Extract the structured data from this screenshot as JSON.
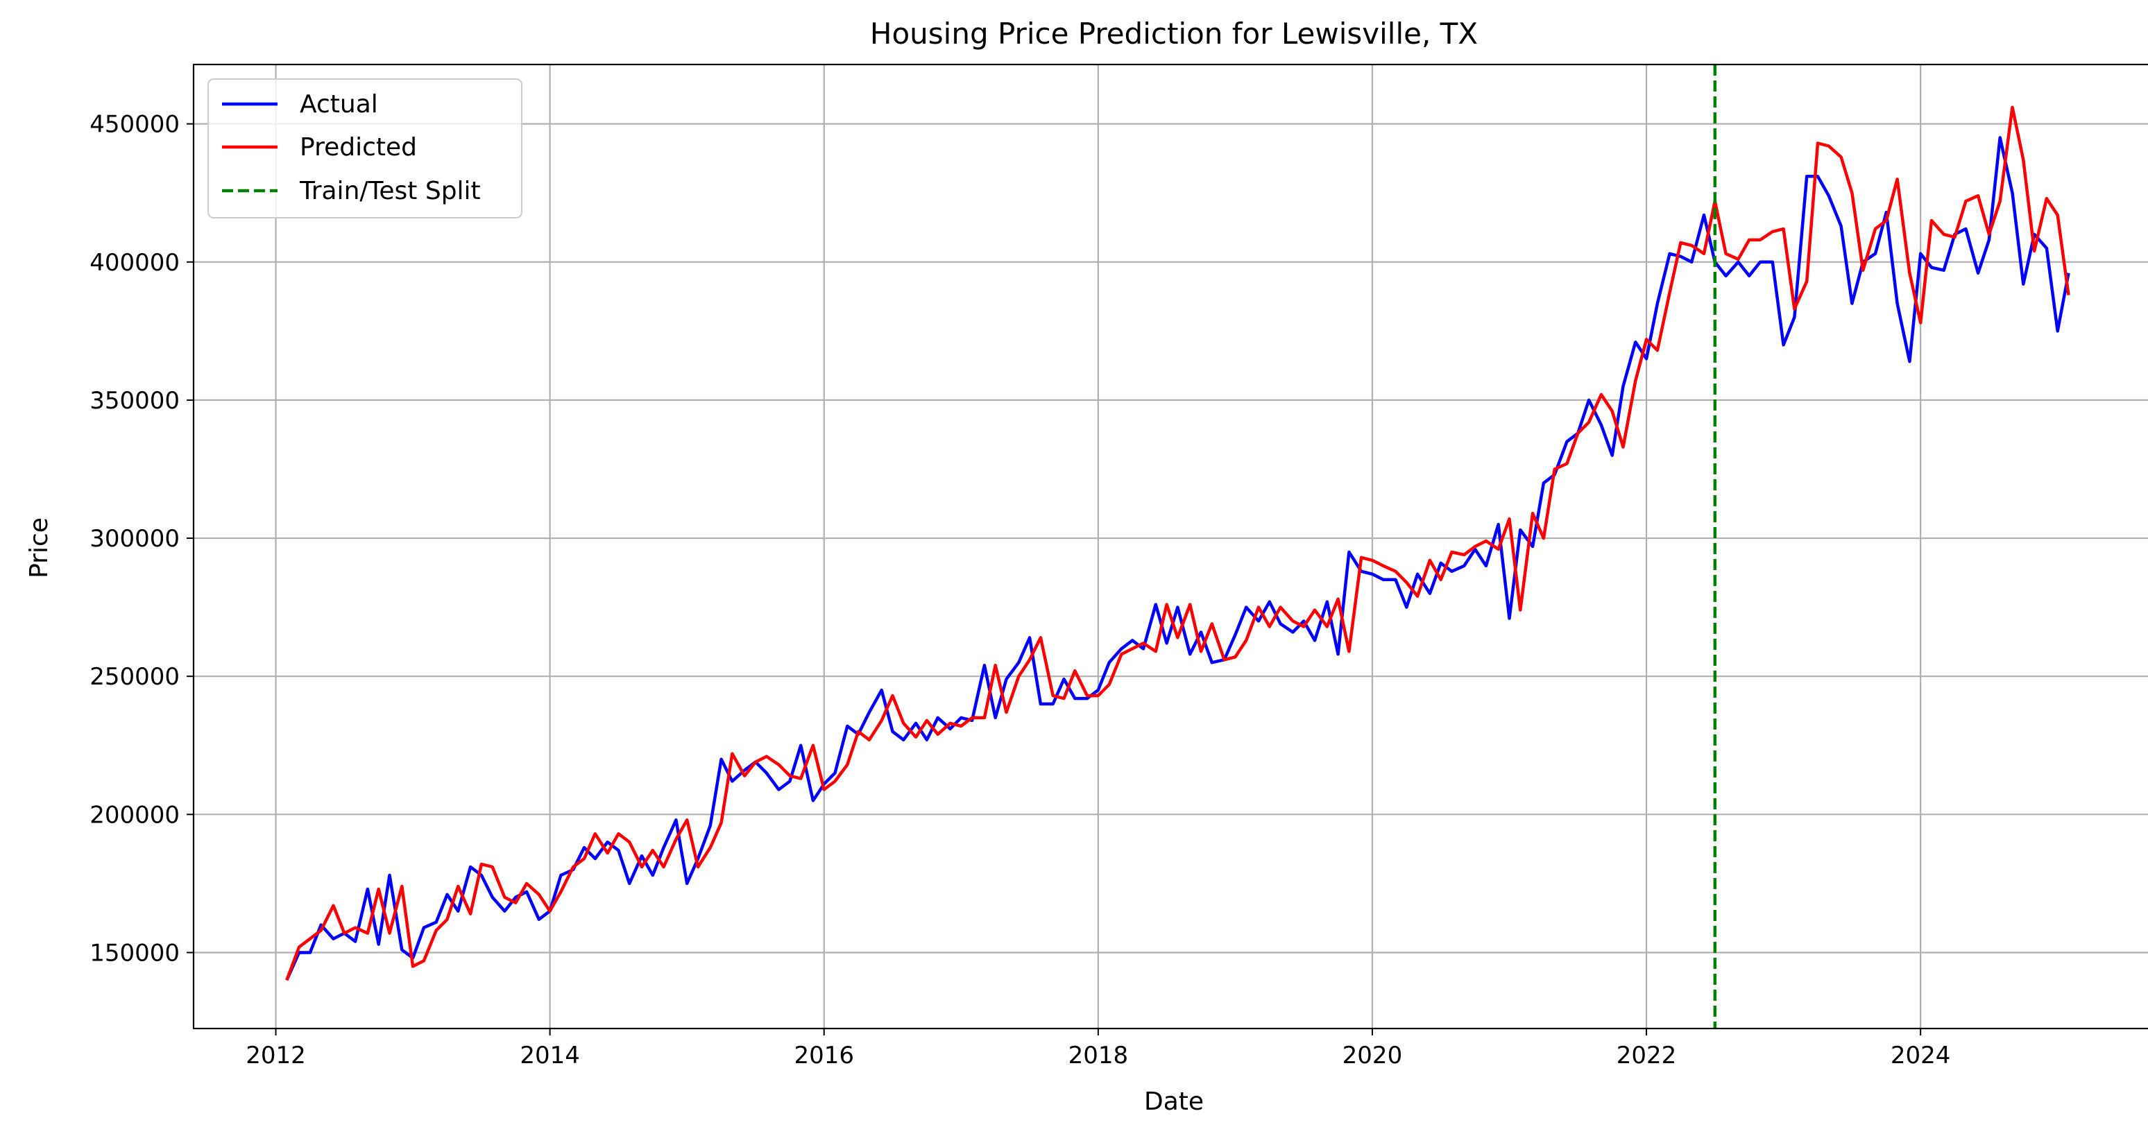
{
  "chart_data": {
    "type": "line",
    "title": "Housing Price Prediction for Lewisville, TX",
    "xlabel": "Date",
    "ylabel": "Price",
    "xlim": [
      2011.4,
      2025.7
    ],
    "ylim": [
      122500,
      471500
    ],
    "xticks": [
      2012,
      2014,
      2016,
      2018,
      2020,
      2022,
      2024
    ],
    "yticks": [
      150000,
      200000,
      250000,
      300000,
      350000,
      400000,
      450000
    ],
    "grid": true,
    "legend_position": "top-left",
    "split": {
      "name": "Train/Test Split",
      "x": 2022.5,
      "color": "#008000"
    },
    "series": [
      {
        "name": "Actual",
        "color": "#0000ff",
        "x": [
          2012.08,
          2012.17,
          2012.25,
          2012.33,
          2012.42,
          2012.5,
          2012.58,
          2012.67,
          2012.75,
          2012.83,
          2012.92,
          2013.0,
          2013.08,
          2013.17,
          2013.25,
          2013.33,
          2013.42,
          2013.5,
          2013.58,
          2013.67,
          2013.75,
          2013.83,
          2013.92,
          2014.0,
          2014.08,
          2014.17,
          2014.25,
          2014.33,
          2014.42,
          2014.5,
          2014.58,
          2014.67,
          2014.75,
          2014.83,
          2014.92,
          2015.0,
          2015.08,
          2015.17,
          2015.25,
          2015.33,
          2015.42,
          2015.5,
          2015.58,
          2015.67,
          2015.75,
          2015.83,
          2015.92,
          2016.0,
          2016.08,
          2016.17,
          2016.25,
          2016.33,
          2016.42,
          2016.5,
          2016.58,
          2016.67,
          2016.75,
          2016.83,
          2016.92,
          2017.0,
          2017.08,
          2017.17,
          2017.25,
          2017.33,
          2017.42,
          2017.5,
          2017.58,
          2017.67,
          2017.75,
          2017.83,
          2017.92,
          2018.0,
          2018.08,
          2018.17,
          2018.25,
          2018.33,
          2018.42,
          2018.5,
          2018.58,
          2018.67,
          2018.75,
          2018.83,
          2018.92,
          2019.0,
          2019.08,
          2019.17,
          2019.25,
          2019.33,
          2019.42,
          2019.5,
          2019.58,
          2019.67,
          2019.75,
          2019.83,
          2019.92,
          2020.0,
          2020.08,
          2020.17,
          2020.25,
          2020.33,
          2020.42,
          2020.5,
          2020.58,
          2020.67,
          2020.75,
          2020.83,
          2020.92,
          2021.0,
          2021.08,
          2021.17,
          2021.25,
          2021.33,
          2021.42,
          2021.5,
          2021.58,
          2021.67,
          2021.75,
          2021.83,
          2021.92,
          2022.0,
          2022.08,
          2022.17,
          2022.25,
          2022.33,
          2022.42,
          2022.5,
          2022.58,
          2022.67,
          2022.75,
          2022.83,
          2022.92,
          2023.0,
          2023.08,
          2023.17,
          2023.25,
          2023.33,
          2023.42,
          2023.5,
          2023.58,
          2023.67,
          2023.75,
          2023.83,
          2023.92,
          2024.0,
          2024.08,
          2024.17,
          2024.25,
          2024.33,
          2024.42,
          2024.5,
          2024.58,
          2024.67,
          2024.75,
          2024.83,
          2024.92,
          2025.0,
          2025.08
        ],
        "y": [
          140000,
          150000,
          150000,
          160000,
          155000,
          157000,
          154000,
          173000,
          153000,
          178000,
          151000,
          148000,
          159000,
          161000,
          171000,
          165000,
          181000,
          178000,
          170000,
          165000,
          170000,
          172000,
          162000,
          165000,
          178000,
          180000,
          188000,
          184000,
          190000,
          187000,
          175000,
          185000,
          178000,
          188000,
          198000,
          175000,
          184000,
          196000,
          220000,
          212000,
          216000,
          219000,
          215000,
          209000,
          212000,
          225000,
          205000,
          211000,
          215000,
          232000,
          229000,
          237000,
          245000,
          230000,
          227000,
          233000,
          227000,
          235000,
          231000,
          235000,
          234000,
          254000,
          235000,
          249000,
          255000,
          264000,
          240000,
          240000,
          249000,
          242000,
          242000,
          245000,
          255000,
          260000,
          263000,
          260000,
          276000,
          262000,
          275000,
          258000,
          266000,
          255000,
          256000,
          265000,
          275000,
          270000,
          277000,
          269000,
          266000,
          270000,
          263000,
          277000,
          258000,
          295000,
          288000,
          287000,
          285000,
          285000,
          275000,
          287000,
          280000,
          291000,
          288000,
          290000,
          296000,
          290000,
          305000,
          271000,
          303000,
          297000,
          320000,
          323000,
          335000,
          338000,
          350000,
          341000,
          330000,
          355000,
          371000,
          365000,
          385000,
          403000,
          402000,
          400000,
          417000,
          400000,
          395000,
          400000,
          395000,
          400000,
          400000,
          370000,
          380000,
          431000,
          431000,
          424000,
          413000,
          385000,
          400000,
          403000,
          418000,
          385000,
          364000,
          403000,
          398000,
          397000,
          410000,
          412000,
          396000,
          408000,
          445000,
          425000,
          392000,
          410000,
          405000,
          375000,
          396000
        ]
      },
      {
        "name": "Predicted",
        "color": "#ff0000",
        "x": [
          2012.08,
          2012.17,
          2012.25,
          2012.33,
          2012.42,
          2012.5,
          2012.58,
          2012.67,
          2012.75,
          2012.83,
          2012.92,
          2013.0,
          2013.08,
          2013.17,
          2013.25,
          2013.33,
          2013.42,
          2013.5,
          2013.58,
          2013.67,
          2013.75,
          2013.83,
          2013.92,
          2014.0,
          2014.08,
          2014.17,
          2014.25,
          2014.33,
          2014.42,
          2014.5,
          2014.58,
          2014.67,
          2014.75,
          2014.83,
          2014.92,
          2015.0,
          2015.08,
          2015.17,
          2015.25,
          2015.33,
          2015.42,
          2015.5,
          2015.58,
          2015.67,
          2015.75,
          2015.83,
          2015.92,
          2016.0,
          2016.08,
          2016.17,
          2016.25,
          2016.33,
          2016.42,
          2016.5,
          2016.58,
          2016.67,
          2016.75,
          2016.83,
          2016.92,
          2017.0,
          2017.08,
          2017.17,
          2017.25,
          2017.33,
          2017.42,
          2017.5,
          2017.58,
          2017.67,
          2017.75,
          2017.83,
          2017.92,
          2018.0,
          2018.08,
          2018.17,
          2018.25,
          2018.33,
          2018.42,
          2018.5,
          2018.58,
          2018.67,
          2018.75,
          2018.83,
          2018.92,
          2019.0,
          2019.08,
          2019.17,
          2019.25,
          2019.33,
          2019.42,
          2019.5,
          2019.58,
          2019.67,
          2019.75,
          2019.83,
          2019.92,
          2020.0,
          2020.08,
          2020.17,
          2020.25,
          2020.33,
          2020.42,
          2020.5,
          2020.58,
          2020.67,
          2020.75,
          2020.83,
          2020.92,
          2021.0,
          2021.08,
          2021.17,
          2021.25,
          2021.33,
          2021.42,
          2021.5,
          2021.58,
          2021.67,
          2021.75,
          2021.83,
          2021.92,
          2022.0,
          2022.08,
          2022.17,
          2022.25,
          2022.33,
          2022.42,
          2022.5,
          2022.58,
          2022.67,
          2022.75,
          2022.83,
          2022.92,
          2023.0,
          2023.08,
          2023.17,
          2023.25,
          2023.33,
          2023.42,
          2023.5,
          2023.58,
          2023.67,
          2023.75,
          2023.83,
          2023.92,
          2024.0,
          2024.08,
          2024.17,
          2024.25,
          2024.33,
          2024.42,
          2024.5,
          2024.58,
          2024.67,
          2024.75,
          2024.83,
          2024.92,
          2025.0,
          2025.08
        ],
        "y": [
          140000,
          152000,
          155000,
          158000,
          167000,
          157000,
          159000,
          157000,
          173000,
          157000,
          174000,
          145000,
          147000,
          158000,
          162000,
          174000,
          164000,
          182000,
          181000,
          170000,
          168000,
          175000,
          171000,
          165000,
          172000,
          181000,
          184000,
          193000,
          186000,
          193000,
          190000,
          181000,
          187000,
          181000,
          191000,
          198000,
          181000,
          188000,
          197000,
          222000,
          214000,
          219000,
          221000,
          218000,
          214000,
          213000,
          225000,
          209000,
          212000,
          218000,
          230000,
          227000,
          234000,
          243000,
          233000,
          228000,
          234000,
          229000,
          233000,
          232000,
          235000,
          235000,
          254000,
          237000,
          250000,
          256000,
          264000,
          243000,
          242000,
          252000,
          243000,
          243000,
          247000,
          258000,
          260000,
          262000,
          259000,
          276000,
          264000,
          276000,
          259000,
          269000,
          256000,
          257000,
          263000,
          275000,
          268000,
          275000,
          270000,
          268000,
          274000,
          268000,
          278000,
          259000,
          293000,
          292000,
          290000,
          288000,
          284000,
          279000,
          292000,
          285000,
          295000,
          294000,
          297000,
          299000,
          296000,
          307000,
          274000,
          309000,
          300000,
          325000,
          327000,
          338000,
          342000,
          352000,
          346000,
          333000,
          357000,
          372000,
          368000,
          389000,
          407000,
          406000,
          403000,
          422000,
          403000,
          401000,
          408000,
          408000,
          411000,
          412000,
          383000,
          393000,
          443000,
          442000,
          438000,
          425000,
          397000,
          412000,
          415000,
          430000,
          396000,
          378000,
          415000,
          410000,
          409000,
          422000,
          424000,
          410000,
          422000,
          456000,
          437000,
          404000,
          423000,
          417000,
          388000
        ]
      }
    ]
  }
}
